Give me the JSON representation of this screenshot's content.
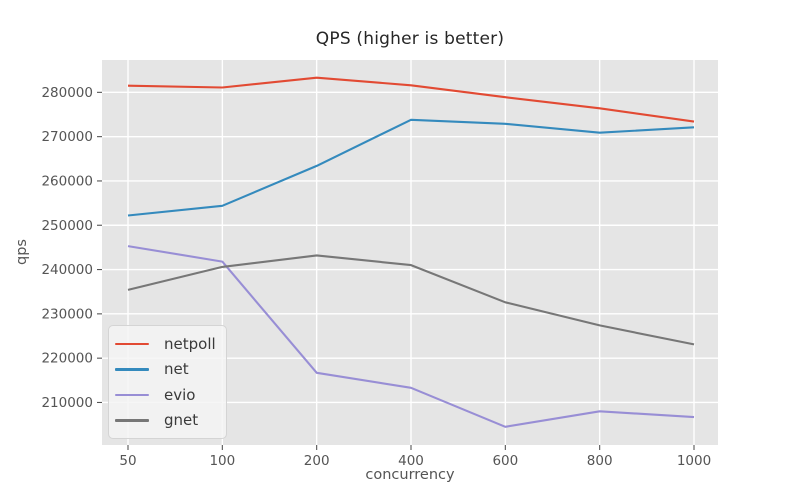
{
  "chart_data": {
    "type": "line",
    "title": "QPS (higher is better)",
    "xlabel": "concurrency",
    "ylabel": "qps",
    "categories": [
      "50",
      "100",
      "200",
      "400",
      "600",
      "800",
      "1000"
    ],
    "series": [
      {
        "name": "netpoll",
        "color": "#E24A33",
        "values": [
          281500,
          281100,
          283300,
          281600,
          278900,
          276400,
          273400
        ]
      },
      {
        "name": "net",
        "color": "#348ABD",
        "values": [
          252200,
          254400,
          263400,
          273800,
          272900,
          270900,
          272100
        ]
      },
      {
        "name": "evio",
        "color": "#988ED5",
        "values": [
          245300,
          241800,
          216700,
          213300,
          204500,
          208000,
          206700
        ]
      },
      {
        "name": "gnet",
        "color": "#777777",
        "values": [
          235400,
          240600,
          243200,
          241000,
          232600,
          227400,
          223100
        ]
      }
    ],
    "yticks": [
      210000,
      220000,
      230000,
      240000,
      250000,
      260000,
      270000,
      280000
    ],
    "ylim": [
      200400,
      287300
    ],
    "grid": true,
    "legend_position": "lower left",
    "colors": {
      "figure_bg": "#ffffff",
      "axes_bg": "#e5e5e5",
      "grid": "#ffffff",
      "tick_mark": "#555555",
      "tick_text": "#555555",
      "axis_label_text": "#555555",
      "title_text": "#262626",
      "legend_bg": "#f5f5f5",
      "legend_border": "#d4d4d4",
      "legend_text": "#3a3a3a"
    }
  }
}
